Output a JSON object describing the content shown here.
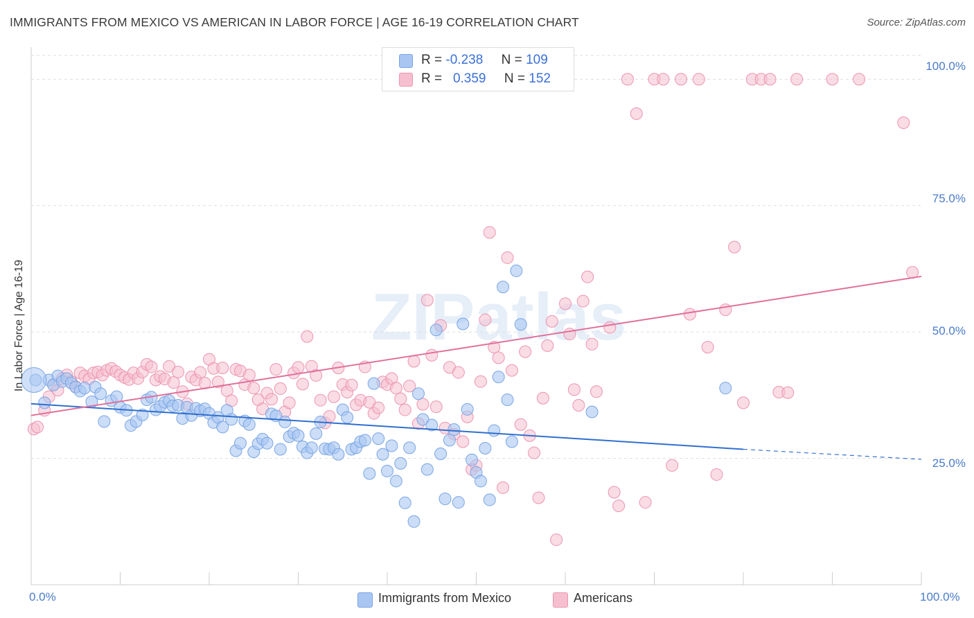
{
  "header": {
    "title": "IMMIGRANTS FROM MEXICO VS AMERICAN IN LABOR FORCE | AGE 16-19 CORRELATION CHART",
    "source": "Source: ZipAtlas.com"
  },
  "watermark": "ZIPatlas",
  "colors": {
    "blue_fill": "#a9c6f2",
    "blue_stroke": "#7aa5e4",
    "blue_line": "#2f6fce",
    "pink_fill": "#f6bfd0",
    "pink_stroke": "#ec94b0",
    "pink_line": "#e0709a",
    "tick_text": "#4a7cc9",
    "grid": "#dddddd"
  },
  "legend": {
    "rows": [
      {
        "r_label": "R =",
        "r_value": "-0.238",
        "n_label": "N =",
        "n_value": "109"
      },
      {
        "r_label": "R =",
        "r_value": "0.359",
        "n_label": "N =",
        "n_value": "152"
      }
    ]
  },
  "chart_data": {
    "type": "scatter",
    "title": "IMMIGRANTS FROM MEXICO VS AMERICAN IN LABOR FORCE | AGE 16-19 CORRELATION CHART",
    "xlabel": "",
    "ylabel": "In Labor Force | Age 16-19",
    "xlim": [
      0,
      100
    ],
    "ylim": [
      0,
      100
    ],
    "x_tick_labels": [
      "0.0%",
      "100.0%"
    ],
    "y_tick_labels": [
      "25.0%",
      "50.0%",
      "75.0%",
      "100.0%"
    ],
    "y_ticks": [
      25,
      50,
      75,
      100
    ],
    "grid": true,
    "legend_position": "top-center and bottom",
    "series": [
      {
        "name": "Immigrants from Mexico",
        "r": -0.238,
        "n": 109,
        "trend": {
          "x0": 0,
          "y0": 35.8,
          "x1": 80,
          "y1": 26.8,
          "dashed_to_x": 100,
          "dashed_y1": 24.8
        },
        "points": [
          [
            0.5,
            40.5
          ],
          [
            1.5,
            36
          ],
          [
            2,
            40.5
          ],
          [
            2.5,
            39.5
          ],
          [
            3,
            41.3
          ],
          [
            3.5,
            40.2
          ],
          [
            4,
            40.8
          ],
          [
            4.5,
            39.9
          ],
          [
            5,
            39.1
          ],
          [
            5.5,
            38.3
          ],
          [
            6,
            38.9
          ],
          [
            6.8,
            36.2
          ],
          [
            7.2,
            39.1
          ],
          [
            7.8,
            37.8
          ],
          [
            8.2,
            32.3
          ],
          [
            9,
            36.4
          ],
          [
            9.6,
            37.2
          ],
          [
            10,
            35.1
          ],
          [
            10.7,
            34.5
          ],
          [
            11.2,
            31.5
          ],
          [
            11.8,
            32.3
          ],
          [
            12.5,
            33.6
          ],
          [
            13,
            36.6
          ],
          [
            13.5,
            37.1
          ],
          [
            14,
            34.6
          ],
          [
            14.5,
            35.3
          ],
          [
            15,
            36.1
          ],
          [
            15.5,
            36.4
          ],
          [
            15.9,
            35.4
          ],
          [
            16.5,
            35.5
          ],
          [
            17,
            32.9
          ],
          [
            17.5,
            35.1
          ],
          [
            18,
            33.5
          ],
          [
            18.5,
            34.9
          ],
          [
            19,
            34.4
          ],
          [
            19.5,
            34.8
          ],
          [
            20,
            33.9
          ],
          [
            20.5,
            32.1
          ],
          [
            21,
            33.1
          ],
          [
            21.5,
            31.2
          ],
          [
            22,
            34.5
          ],
          [
            22.5,
            32.7
          ],
          [
            23,
            26.5
          ],
          [
            23.5,
            28.0
          ],
          [
            24,
            32.4
          ],
          [
            24.5,
            31.7
          ],
          [
            25,
            26.3
          ],
          [
            25.5,
            27.9
          ],
          [
            26,
            28.8
          ],
          [
            26.5,
            28.0
          ],
          [
            27,
            33.8
          ],
          [
            27.5,
            33.4
          ],
          [
            28,
            26.8
          ],
          [
            28.5,
            32.2
          ],
          [
            29,
            29.3
          ],
          [
            29.5,
            30.0
          ],
          [
            30,
            29.5
          ],
          [
            30.5,
            27.3
          ],
          [
            31,
            26.1
          ],
          [
            31.5,
            27.1
          ],
          [
            32,
            29.9
          ],
          [
            32.5,
            32.2
          ],
          [
            33,
            26.9
          ],
          [
            33.5,
            26.8
          ],
          [
            34,
            27.1
          ],
          [
            34.5,
            25.8
          ],
          [
            35,
            34.6
          ],
          [
            35.5,
            33.1
          ],
          [
            36,
            26.8
          ],
          [
            36.5,
            27.1
          ],
          [
            37,
            28.3
          ],
          [
            37.5,
            28.6
          ],
          [
            38,
            22.0
          ],
          [
            38.5,
            39.8
          ],
          [
            39,
            28.9
          ],
          [
            39.5,
            25.8
          ],
          [
            40,
            22.5
          ],
          [
            40.5,
            27.5
          ],
          [
            41,
            20.5
          ],
          [
            41.5,
            24.0
          ],
          [
            42,
            16.2
          ],
          [
            42.5,
            27.1
          ],
          [
            43,
            12.5
          ],
          [
            43.5,
            37.8
          ],
          [
            44,
            32.7
          ],
          [
            44.5,
            22.8
          ],
          [
            45,
            31.6
          ],
          [
            45.5,
            50.4
          ],
          [
            46,
            25.9
          ],
          [
            46.5,
            17.0
          ],
          [
            47,
            28.6
          ],
          [
            47.5,
            30.7
          ],
          [
            48,
            16.3
          ],
          [
            48.5,
            51.6
          ],
          [
            49,
            34.7
          ],
          [
            49.5,
            24.7
          ],
          [
            50,
            22.2
          ],
          [
            50.5,
            20.5
          ],
          [
            51,
            27.0
          ],
          [
            51.5,
            16.8
          ],
          [
            52,
            30.5
          ],
          [
            52.5,
            41.1
          ],
          [
            53,
            58.9
          ],
          [
            53.5,
            36.6
          ],
          [
            54,
            28.3
          ],
          [
            54.5,
            62.1
          ],
          [
            55,
            51.5
          ],
          [
            63,
            34.2
          ],
          [
            78,
            38.9
          ]
        ]
      },
      {
        "name": "Americans",
        "r": 0.359,
        "n": 152,
        "trend": {
          "x0": 0,
          "y0": 33.5,
          "x1": 100,
          "y1": 61.0
        },
        "points": [
          [
            0.3,
            30.8
          ],
          [
            0.7,
            31.2
          ],
          [
            1.5,
            34.5
          ],
          [
            2,
            37.2
          ],
          [
            2.5,
            39.6
          ],
          [
            3,
            38.5
          ],
          [
            3.5,
            40.8
          ],
          [
            4,
            41.5
          ],
          [
            4.5,
            40.2
          ],
          [
            5,
            39.2
          ],
          [
            5.5,
            41.9
          ],
          [
            6,
            41.3
          ],
          [
            6.5,
            40.7
          ],
          [
            7,
            41.9
          ],
          [
            7.5,
            42.1
          ],
          [
            8,
            41.5
          ],
          [
            8.5,
            42.4
          ],
          [
            9,
            42.8
          ],
          [
            9.5,
            42.2
          ],
          [
            10,
            41.5
          ],
          [
            10.5,
            41.0
          ],
          [
            11,
            40.6
          ],
          [
            11.5,
            41.9
          ],
          [
            12,
            40.8
          ],
          [
            12.5,
            42.1
          ],
          [
            13,
            43.6
          ],
          [
            13.5,
            43.1
          ],
          [
            14,
            40.5
          ],
          [
            14.5,
            41.2
          ],
          [
            15,
            40.7
          ],
          [
            15.5,
            43.2
          ],
          [
            16,
            40.0
          ],
          [
            16.5,
            42.1
          ],
          [
            17,
            38.2
          ],
          [
            17.5,
            35.8
          ],
          [
            18,
            41.1
          ],
          [
            18.5,
            40.5
          ],
          [
            19,
            42.0
          ],
          [
            19.5,
            39.9
          ],
          [
            20,
            44.6
          ],
          [
            20.5,
            42.8
          ],
          [
            21,
            40.1
          ],
          [
            21.5,
            42.9
          ],
          [
            22,
            38.4
          ],
          [
            22.5,
            36.4
          ],
          [
            23,
            42.6
          ],
          [
            23.5,
            42.3
          ],
          [
            24,
            39.6
          ],
          [
            24.5,
            41.5
          ],
          [
            25,
            38.9
          ],
          [
            25.5,
            36.6
          ],
          [
            26,
            34.8
          ],
          [
            26.5,
            37.9
          ],
          [
            27,
            36.7
          ],
          [
            27.5,
            42.6
          ],
          [
            28,
            38.8
          ],
          [
            28.5,
            34.2
          ],
          [
            29,
            36.0
          ],
          [
            29.5,
            41.9
          ],
          [
            30,
            43.0
          ],
          [
            30.5,
            39.7
          ],
          [
            31,
            49.1
          ],
          [
            31.5,
            43.2
          ],
          [
            32,
            41.4
          ],
          [
            32.5,
            36.5
          ],
          [
            33,
            32.0
          ],
          [
            33.5,
            33.3
          ],
          [
            34,
            37.2
          ],
          [
            34.5,
            42.9
          ],
          [
            35,
            39.6
          ],
          [
            35.5,
            38.1
          ],
          [
            36,
            39.5
          ],
          [
            36.5,
            35.6
          ],
          [
            37,
            36.5
          ],
          [
            37.5,
            43.1
          ],
          [
            38,
            36.1
          ],
          [
            38.5,
            33.9
          ],
          [
            39,
            35.0
          ],
          [
            39.5,
            40.1
          ],
          [
            40,
            39.6
          ],
          [
            40.5,
            40.8
          ],
          [
            41,
            38.9
          ],
          [
            41.5,
            36.8
          ],
          [
            42,
            34.6
          ],
          [
            42.5,
            39.3
          ],
          [
            43,
            44.2
          ],
          [
            43.5,
            31.9
          ],
          [
            44,
            35.7
          ],
          [
            44.5,
            56.3
          ],
          [
            45,
            45.4
          ],
          [
            45.5,
            35.2
          ],
          [
            46,
            51.3
          ],
          [
            46.5,
            31.0
          ],
          [
            47,
            43.0
          ],
          [
            47.5,
            29.8
          ],
          [
            48,
            42.0
          ],
          [
            48.5,
            28.3
          ],
          [
            49,
            33.2
          ],
          [
            49.5,
            22.8
          ],
          [
            50,
            23.6
          ],
          [
            50.5,
            40.2
          ],
          [
            51,
            52.4
          ],
          [
            51.5,
            69.7
          ],
          [
            52,
            47.0
          ],
          [
            52.5,
            44.9
          ],
          [
            53,
            19.2
          ],
          [
            53.5,
            64.7
          ],
          [
            54,
            42.4
          ],
          [
            55,
            31.7
          ],
          [
            55.5,
            46.1
          ],
          [
            56,
            29.5
          ],
          [
            56.5,
            26.1
          ],
          [
            57,
            17.2
          ],
          [
            57.5,
            36.9
          ],
          [
            58,
            47.3
          ],
          [
            58.5,
            52.1
          ],
          [
            59,
            8.9
          ],
          [
            60,
            55.6
          ],
          [
            60.5,
            49.6
          ],
          [
            61,
            38.6
          ],
          [
            61.5,
            35.5
          ],
          [
            62,
            56.1
          ],
          [
            62.5,
            60.9
          ],
          [
            63,
            47.6
          ],
          [
            63.5,
            38.2
          ],
          [
            65,
            50.9
          ],
          [
            65.5,
            18.3
          ],
          [
            66,
            15.6
          ],
          [
            67,
            100.0
          ],
          [
            68,
            93.2
          ],
          [
            69,
            16.3
          ],
          [
            70,
            100.0
          ],
          [
            71,
            100.0
          ],
          [
            72,
            23.6
          ],
          [
            73,
            100.0
          ],
          [
            74,
            53.5
          ],
          [
            75,
            100.0
          ],
          [
            76,
            47.0
          ],
          [
            77,
            21.8
          ],
          [
            78,
            54.4
          ],
          [
            79,
            66.8
          ],
          [
            80,
            36.0
          ],
          [
            81,
            100.0
          ],
          [
            82,
            100.0
          ],
          [
            83,
            100.0
          ],
          [
            84,
            38.1
          ],
          [
            85,
            38.0
          ],
          [
            86,
            100.0
          ],
          [
            90,
            100.0
          ],
          [
            93,
            100.0
          ],
          [
            98,
            91.4
          ],
          [
            99,
            61.8
          ]
        ]
      }
    ]
  },
  "bottom_legend": {
    "items": [
      {
        "label": "Immigrants from Mexico"
      },
      {
        "label": "Americans"
      }
    ]
  }
}
